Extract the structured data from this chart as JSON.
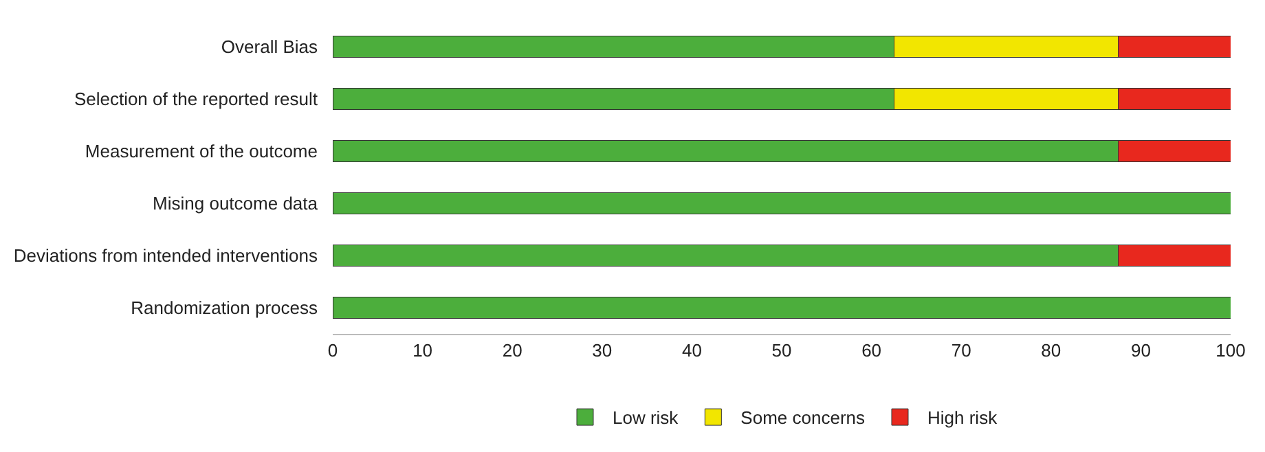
{
  "chart_data": {
    "type": "bar",
    "orientation": "horizontal",
    "stacked": true,
    "categories": [
      "Overall Bias",
      "Selection of the reported result",
      "Measurement of the outcome",
      "Mising outcome data",
      "Deviations from intended interventions",
      "Randomization process"
    ],
    "series": [
      {
        "name": "Low risk",
        "color": "#4cae3c",
        "values": [
          62.5,
          62.5,
          87.5,
          100,
          87.5,
          100
        ]
      },
      {
        "name": "Some concerns",
        "color": "#f2e600",
        "values": [
          25,
          25,
          0,
          0,
          0,
          0
        ]
      },
      {
        "name": "High risk",
        "color": "#e8281e",
        "values": [
          12.5,
          12.5,
          12.5,
          0,
          12.5,
          0
        ]
      }
    ],
    "xlim": [
      0,
      100
    ],
    "xticks": [
      0,
      10,
      20,
      30,
      40,
      50,
      60,
      70,
      80,
      90,
      100
    ],
    "legend": "bottom"
  }
}
